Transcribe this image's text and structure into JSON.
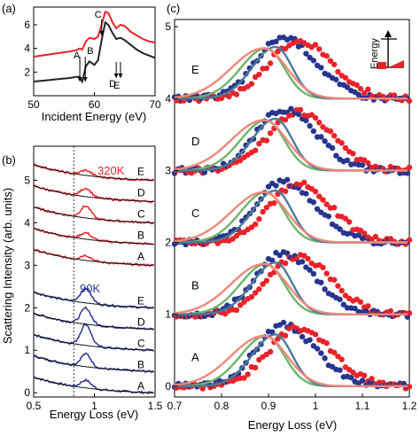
{
  "figure": {
    "ylabel": "Scattering Intensity (arb. units)"
  },
  "panels": {
    "a": {
      "label": "(a)",
      "xlabel": "Incident Energy (eV)",
      "xticks": [
        "50",
        "60",
        "70"
      ],
      "yticks": [
        "2",
        "4",
        "6"
      ],
      "markers": [
        "A",
        "B",
        "C",
        "D",
        "E"
      ]
    },
    "b": {
      "label": "(b)",
      "xlabel": "Energy Loss (eV)",
      "xticks": [
        "0.5",
        "1",
        "1.5"
      ],
      "yticks": [
        "0",
        "1",
        "2",
        "3",
        "4",
        "5"
      ],
      "temp_high": "320K",
      "temp_low": "90K",
      "labels_high": [
        "E",
        "D",
        "C",
        "B",
        "A"
      ],
      "labels_low": [
        "E",
        "D",
        "C",
        "B",
        "A"
      ]
    },
    "c": {
      "label": "(c)",
      "xlabel": "Energy Loss (eV)",
      "xticks": [
        "0.7",
        "0.8",
        "0.9",
        "1",
        "1.1",
        "1.2"
      ],
      "yticks": [
        "0",
        "1",
        "2",
        "3",
        "4",
        "5"
      ],
      "row_labels": [
        "A",
        "B",
        "C",
        "D",
        "E"
      ],
      "inset_label": "Energy"
    }
  },
  "colors": {
    "red": "#e8232a",
    "blue": "#27358f",
    "dark": "#222222",
    "fit_green": "#6db56b",
    "fit_slate": "#4c7a96",
    "fit_salmon": "#f0877b"
  },
  "chart_data": [
    {
      "panel": "a",
      "type": "line",
      "xlabel": "Incident Energy (eV)",
      "xlim": [
        50,
        70
      ],
      "ylim": [
        0,
        7.5
      ],
      "series": [
        {
          "color": "red",
          "x": [
            50,
            52,
            54,
            56,
            57,
            57.6,
            58,
            58.6,
            59.2,
            60,
            60.6,
            61.2,
            61.8,
            62.3,
            63,
            63.6,
            64.3,
            65,
            66,
            67,
            68,
            69,
            70
          ],
          "y": [
            3.3,
            3.45,
            3.6,
            3.75,
            3.85,
            4.0,
            3.9,
            4.6,
            4.9,
            4.8,
            5.0,
            6.0,
            7.1,
            7.0,
            6.2,
            5.7,
            6.0,
            5.9,
            5.4,
            5.1,
            4.8,
            4.6,
            4.5
          ]
        },
        {
          "color": "dark",
          "x": [
            50,
            52,
            54,
            56,
            57,
            57.6,
            58,
            58.6,
            59.2,
            60,
            60.6,
            61.2,
            61.8,
            62.3,
            63,
            63.6,
            64.3,
            65,
            66,
            67,
            68,
            69,
            70
          ],
          "y": [
            1.2,
            1.3,
            1.4,
            1.5,
            1.6,
            1.6,
            1.2,
            2.5,
            2.9,
            2.6,
            3.0,
            4.7,
            6.2,
            6.0,
            5.3,
            4.8,
            4.9,
            4.7,
            4.3,
            3.9,
            3.6,
            3.4,
            3.2
          ]
        }
      ],
      "markers_x": [
        57.6,
        58.5,
        61.2,
        63.6,
        64.3
      ]
    },
    {
      "panel": "b",
      "type": "line",
      "xlabel": "Energy Loss (eV)",
      "xlim": [
        0.5,
        1.5
      ],
      "ylim": [
        -0.1,
        5.8
      ],
      "dashed_x": 0.83,
      "offsets_high": [
        3.0,
        3.5,
        4.0,
        4.5,
        5.0
      ],
      "offsets_low": [
        0.0,
        0.5,
        1.0,
        1.5,
        2.0
      ],
      "peak_center": 0.93,
      "peak_amp_high": [
        0.12,
        0.15,
        0.28,
        0.2,
        0.12
      ],
      "peak_amp_low": [
        0.18,
        0.3,
        0.5,
        0.38,
        0.35
      ]
    },
    {
      "panel": "c",
      "type": "scatter",
      "xlabel": "Energy Loss (eV)",
      "xlim": [
        0.7,
        1.2
      ],
      "ylim": [
        -0.15,
        5.1
      ],
      "offsets": [
        0,
        1,
        2,
        3,
        4
      ],
      "fits": [
        {
          "color": "fit_green",
          "center": 0.895,
          "width": 0.055,
          "amp": 0.7
        },
        {
          "color": "fit_slate",
          "center": 0.915,
          "width": 0.05,
          "amp": 0.72
        },
        {
          "color": "fit_salmon",
          "center": 0.89,
          "width": 0.07,
          "amp": 0.7
        }
      ],
      "scatter_center_red": 0.96,
      "scatter_center_blue": 0.93,
      "scatter_amp": 0.85
    }
  ]
}
